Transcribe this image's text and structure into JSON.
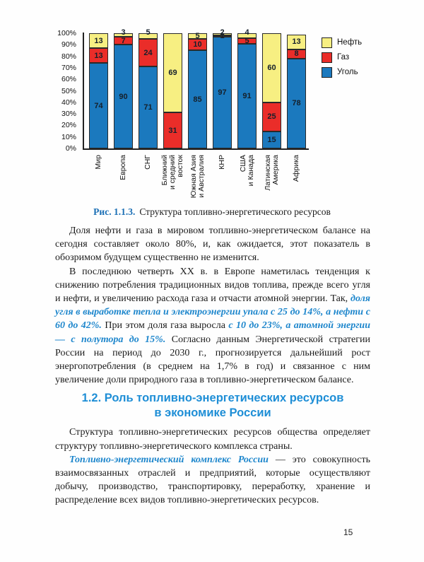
{
  "page": {
    "number": "15"
  },
  "chart_data": {
    "type": "bar",
    "stacked": true,
    "title": "",
    "xlabel": "",
    "ylabel": "",
    "ylim": [
      0,
      100
    ],
    "y_ticks": [
      "100%",
      "90%",
      "80%",
      "70%",
      "60%",
      "50%",
      "40%",
      "30%",
      "20%",
      "10%",
      "0%"
    ],
    "categories": [
      "Мир",
      "Европа",
      "СНГ",
      "Ближний\nи средний\nвосток",
      "Южная Азия\nи Австралия",
      "КНР",
      "США\nи Канада",
      "Латинская\nАмерика",
      "Африка"
    ],
    "series": [
      {
        "name": "Уголь",
        "color": "#1b79be",
        "values": [
          74,
          90,
          71,
          0,
          85,
          97,
          91,
          15,
          78
        ],
        "label_above": [
          false,
          false,
          false,
          false,
          false,
          false,
          false,
          false,
          false
        ]
      },
      {
        "name": "Газ",
        "color": "#ea2d29",
        "values": [
          13,
          7,
          24,
          31,
          10,
          1,
          5,
          25,
          8
        ],
        "label_above": [
          false,
          false,
          false,
          false,
          false,
          false,
          false,
          false,
          false
        ]
      },
      {
        "name": "Нефть",
        "color": "#f7ef82",
        "values": [
          13,
          3,
          5,
          69,
          5,
          2,
          4,
          60,
          13
        ],
        "label_above": [
          false,
          true,
          true,
          false,
          false,
          true,
          true,
          false,
          false
        ]
      }
    ],
    "legend": [
      {
        "label": "Нефть",
        "color": "#f7ef82"
      },
      {
        "label": "Газ",
        "color": "#ea2d29"
      },
      {
        "label": "Уголь",
        "color": "#1b79be"
      }
    ],
    "legend_position": "right",
    "grid": false
  },
  "caption": {
    "label": "Рис. 1.1.3.",
    "text": "Структура топливно-энергетического ресурсов"
  },
  "body1": [
    {
      "runs": [
        {
          "t": "Доля нефти и газа в мировом топливно-энергетическом балансе на сегодня составляет около 80%, и, как ожидается, этот показатель в обозримом будущем существенно не изменится.",
          "s": "n"
        }
      ]
    },
    {
      "runs": [
        {
          "t": "В последнюю четверть XX в. в Европе наметилась тенденция к снижению потребления традиционных видов топлива, прежде всего угля и нефти, и увеличению расхода газа и отчасти атомной энергии. Так, ",
          "s": "n"
        },
        {
          "t": "доля угля в выработке тепла и электроэнергии упала с 25 до 14%, а нефти с 60 до 42%.",
          "s": "bi"
        },
        {
          "t": " При этом доля газа выросла ",
          "s": "n"
        },
        {
          "t": "с 10 до 23%, а атомной энергии — с полутора до 15%.",
          "s": "bi"
        },
        {
          "t": " Согласно данным Энергетической стратегии России на период до 2030 г., прогнозируется дальнейший рост энергопотребления (в среднем на 1,7% в год) и связанное с ним увеличение доли природного газа в топливно-энергетическом балансе.",
          "s": "n"
        }
      ]
    }
  ],
  "heading": {
    "line1": "1.2. Роль топливно-энергетических ресурсов",
    "line2": "в экономике России"
  },
  "body2": [
    {
      "runs": [
        {
          "t": "Структура топливно-энергетических ресурсов общества определяет структуру топливно-энергетического комплекса страны.",
          "s": "n"
        }
      ]
    },
    {
      "runs": [
        {
          "t": "Топливно-энергетический комплекс России",
          "s": "bi"
        },
        {
          "t": " — это совокупность взаимосвязанных отраслей и предприятий, которые осуществляют добычу, производство, транспортировку, переработку, хранение и распределение всех видов топливно-энергетических ресурсов.",
          "s": "n"
        }
      ]
    }
  ]
}
